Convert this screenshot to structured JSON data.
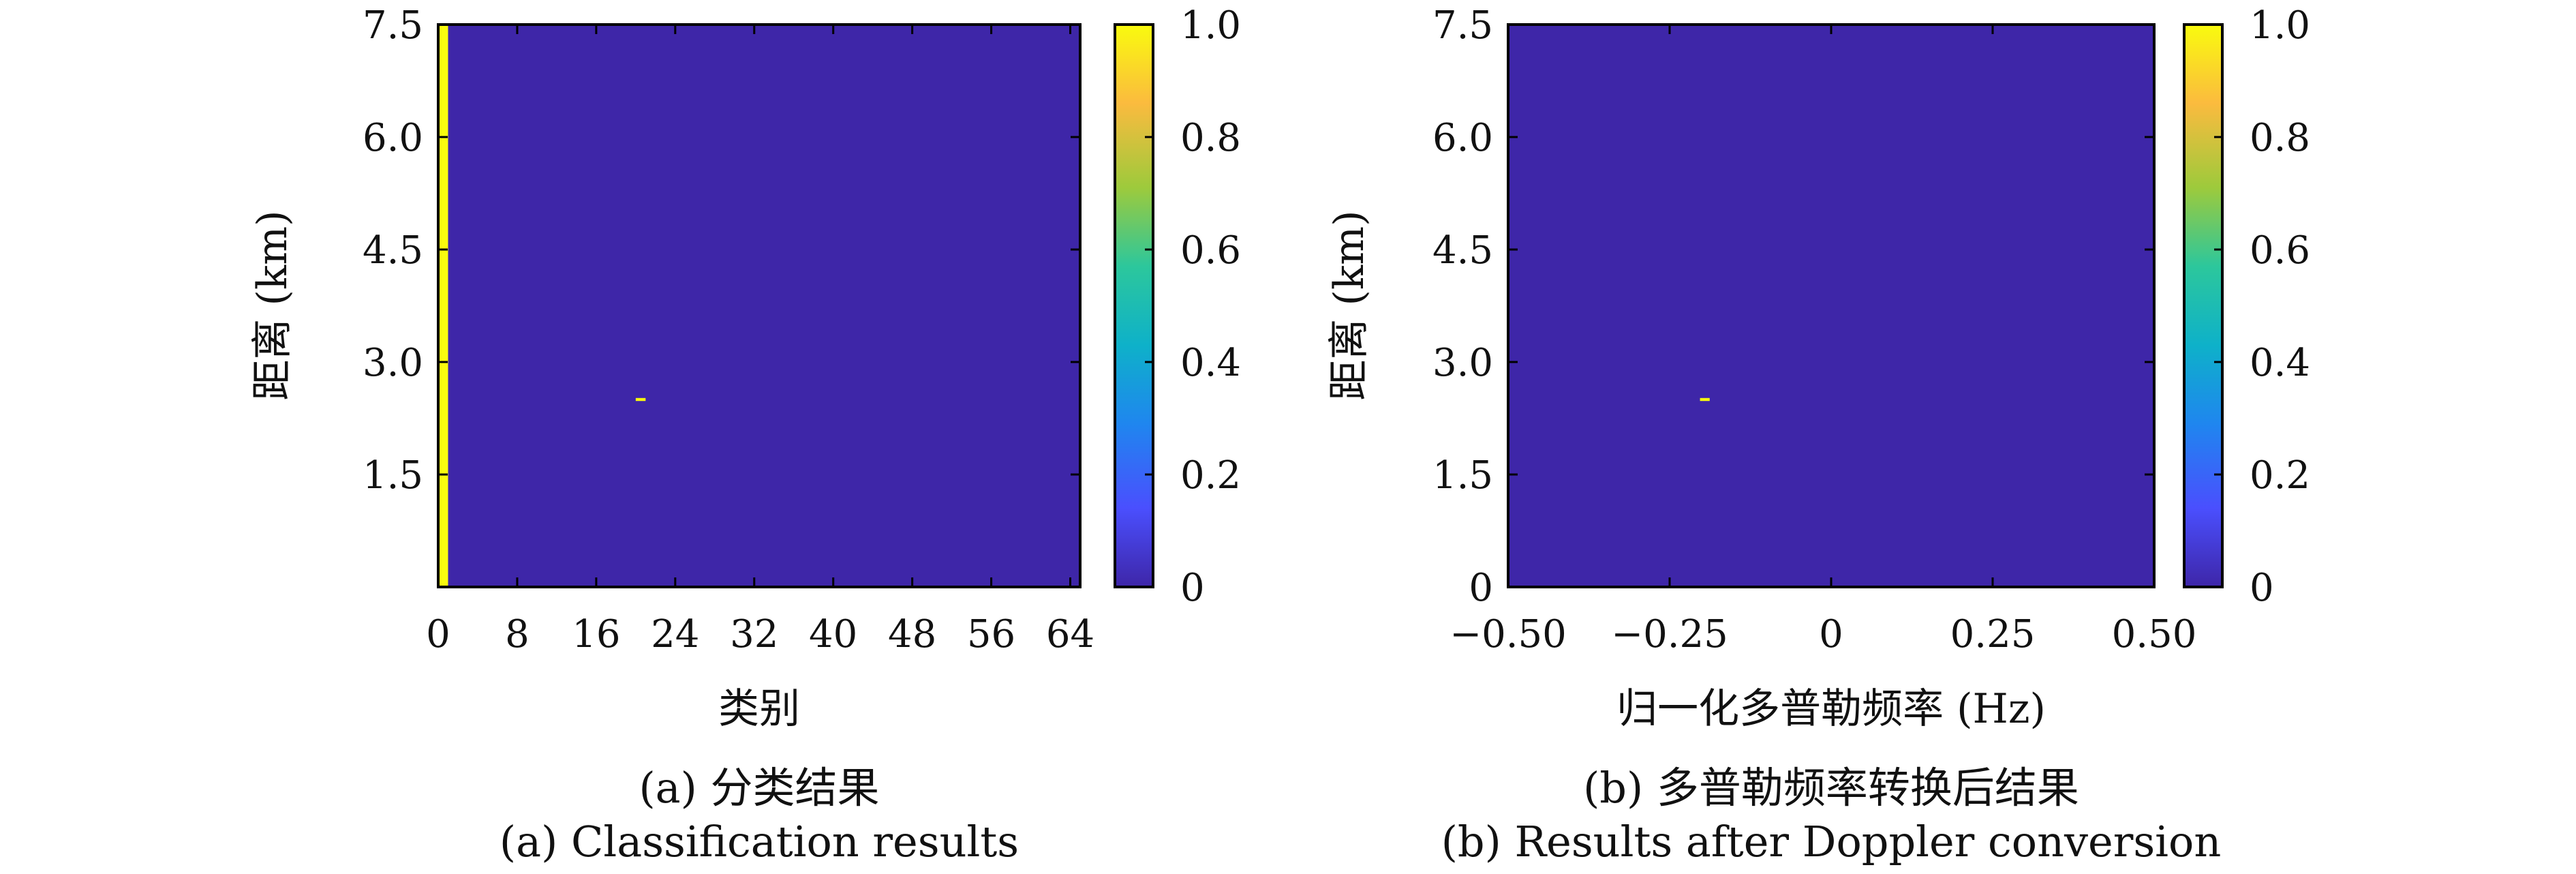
{
  "chart_data": [
    {
      "type": "heatmap",
      "caption_cn": "(a) 分类结果",
      "caption_en": "(a) Classification results",
      "xlabel": "类别",
      "ylabel": "距离 (km)",
      "xlim": [
        0,
        65
      ],
      "ylim": [
        0,
        7.5
      ],
      "x_ticks": [
        0,
        8,
        16,
        24,
        32,
        40,
        48,
        56,
        64
      ],
      "x_tick_labels": [
        "0",
        "8",
        "16",
        "24",
        "32",
        "40",
        "48",
        "56",
        "64"
      ],
      "y_ticks": [
        1.5,
        3.0,
        4.5,
        6.0,
        7.5
      ],
      "y_tick_labels": [
        "1.5",
        "3.0",
        "4.5",
        "6.0",
        "7.5"
      ],
      "background_value": 0,
      "features": [
        {
          "kind": "column",
          "x": [
            0,
            1
          ],
          "y": [
            0,
            7.5
          ],
          "value": 1.0
        },
        {
          "kind": "cell",
          "x": [
            20,
            21
          ],
          "y": [
            2.48,
            2.52
          ],
          "value": 1.0
        }
      ],
      "colorbar": {
        "range": [
          0,
          1
        ],
        "ticks": [
          0,
          0.2,
          0.4,
          0.6,
          0.8,
          1.0
        ],
        "tick_labels": [
          "0",
          "0.2",
          "0.4",
          "0.6",
          "0.8",
          "1.0"
        ],
        "colormap": "parula"
      }
    },
    {
      "type": "heatmap",
      "caption_cn": "(b) 多普勒频率转换后结果",
      "caption_en": "(b) Results after Doppler conversion",
      "xlabel": "归一化多普勒频率 (Hz)",
      "ylabel": "距离 (km)",
      "xlim": [
        -0.5,
        0.5
      ],
      "ylim": [
        0,
        7.5
      ],
      "x_ticks": [
        -0.5,
        -0.25,
        0,
        0.25,
        0.5
      ],
      "x_tick_labels": [
        "−0.50",
        "−0.25",
        "0",
        "0.25",
        "0.50"
      ],
      "y_ticks": [
        0,
        1.5,
        3.0,
        4.5,
        6.0,
        7.5
      ],
      "y_tick_labels": [
        "0",
        "1.5",
        "3.0",
        "4.5",
        "6.0",
        "7.5"
      ],
      "background_value": 0,
      "features": [
        {
          "kind": "cell",
          "x": [
            -0.203,
            -0.188
          ],
          "y": [
            2.48,
            2.52
          ],
          "value": 1.0
        }
      ],
      "colorbar": {
        "range": [
          0,
          1
        ],
        "ticks": [
          0,
          0.2,
          0.4,
          0.6,
          0.8,
          1.0
        ],
        "tick_labels": [
          "0",
          "0.2",
          "0.4",
          "0.6",
          "0.8",
          "1.0"
        ],
        "colormap": "parula"
      }
    }
  ],
  "colors": {
    "low": "#3e26a8",
    "high": "#f9fb0e",
    "colormap_stops": [
      "#3e26a8",
      "#4a4ffe",
      "#1f86ef",
      "#0eb1c9",
      "#2cc79c",
      "#9dca3c",
      "#fbbb3e",
      "#f9fb0e"
    ]
  }
}
